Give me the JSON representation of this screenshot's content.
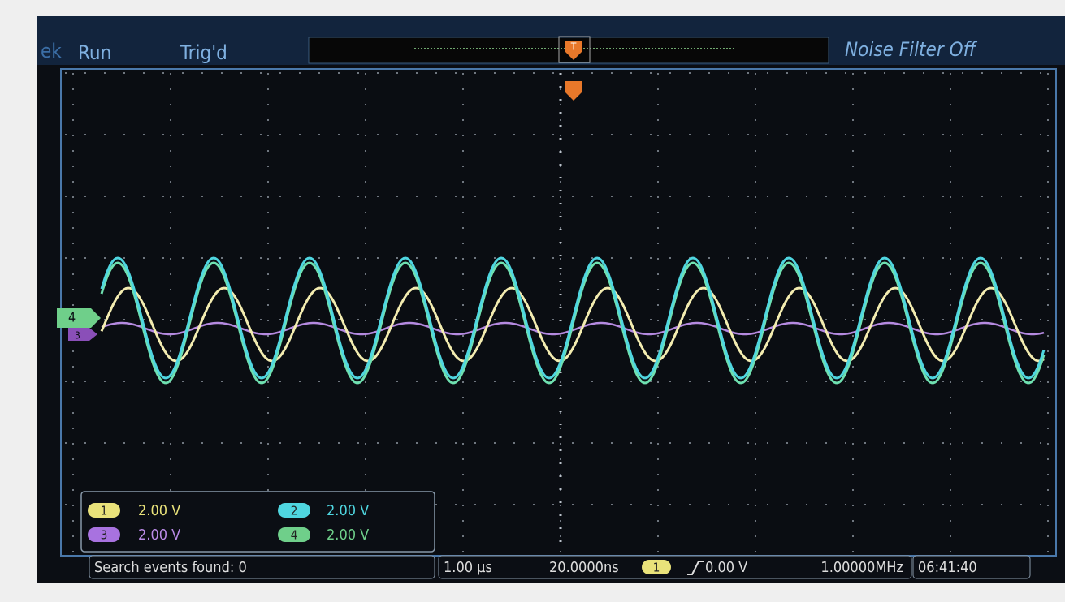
{
  "header": {
    "brand": "ek",
    "run_state": "Run",
    "trigger_state": "Trig'd",
    "noise_filter": "Noise Filter Off"
  },
  "markers": {
    "trigger": "T",
    "ch4": "4",
    "ch3": "3"
  },
  "channels": [
    {
      "label": "1",
      "scale": "2.00 V"
    },
    {
      "label": "2",
      "scale": "2.00 V"
    },
    {
      "label": "3",
      "scale": "2.00 V"
    },
    {
      "label": "4",
      "scale": "2.00 V"
    }
  ],
  "status": {
    "search": "Search events found: 0",
    "timebase": "1.00 µs",
    "position": "20.0000ns",
    "trigger_source": "1",
    "trigger_level": "0.00 V",
    "frequency": "1.00000MHz",
    "clock": "06:41:40"
  }
}
